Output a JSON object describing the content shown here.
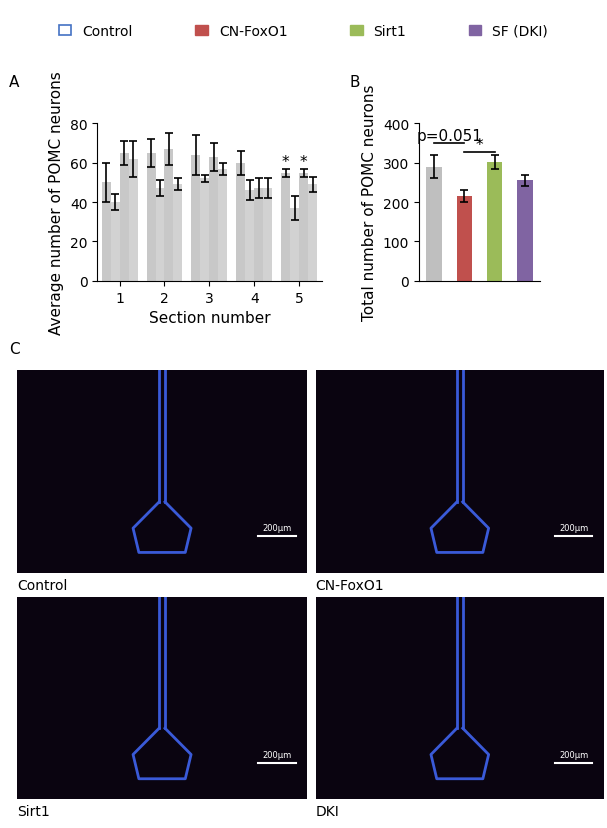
{
  "legend": {
    "entries": [
      {
        "name": "Control",
        "color": "#4472c4",
        "marker": "open"
      },
      {
        "name": "CN-FoxO1",
        "color": "#c0504d"
      },
      {
        "name": "Sirt1",
        "color": "#9bbb59"
      },
      {
        "name": "SF (DKI)",
        "color": "#8064a2"
      }
    ]
  },
  "chart_data": [
    {
      "type": "bar",
      "title": "A",
      "categories": [
        "1",
        "2",
        "3",
        "4",
        "5"
      ],
      "x_label": "Section number",
      "y_label": "Average number of POMC neurons",
      "ylim": [
        0,
        80
      ],
      "yticks": [
        0,
        20,
        40,
        60,
        80
      ],
      "series": [
        {
          "color": "#c8c8c8",
          "values": [
            50,
            65,
            64,
            60,
            55
          ],
          "errors": [
            10,
            7,
            10,
            6,
            2
          ]
        },
        {
          "color": "#d2d2d2",
          "values": [
            40,
            47,
            52,
            46,
            37
          ],
          "errors": [
            4,
            4,
            2,
            5,
            6
          ]
        },
        {
          "color": "#c8c8c8",
          "values": [
            65,
            67,
            63,
            47,
            55
          ],
          "errors": [
            6,
            8,
            7,
            5,
            2
          ]
        },
        {
          "color": "#d2d2d2",
          "values": [
            62,
            49,
            57,
            47,
            49
          ],
          "errors": [
            9,
            3,
            3,
            5,
            4
          ]
        }
      ],
      "annotations": [
        {
          "text": "*",
          "category": 4,
          "series": 0
        },
        {
          "text": "*",
          "category": 4,
          "series": 2
        }
      ]
    },
    {
      "type": "bar",
      "title": "B",
      "categories": [
        null,
        null,
        null,
        null
      ],
      "y_label": "Total number of POMC neurons",
      "values": [
        290,
        215,
        302,
        255
      ],
      "errors": [
        30,
        15,
        18,
        15
      ],
      "colors": [
        "#bfbfbf",
        "#c0504d",
        "#9bbb59",
        "#8064a2"
      ],
      "ylim": [
        0,
        400
      ],
      "yticks": [
        0,
        100,
        200,
        300,
        400
      ],
      "tick_labels": "y",
      "annotations": [
        {
          "text": "p=0.051",
          "from": 0,
          "to": 1,
          "y": 350
        },
        {
          "text": "*",
          "from": 1,
          "to": 2,
          "y": 328
        }
      ]
    }
  ],
  "images": {
    "title": "C",
    "panels": [
      {
        "label": "Control",
        "scale_bar": "200μm"
      },
      {
        "label": "CN-FoxO1",
        "scale_bar": "200μm"
      },
      {
        "label": "Sirt1",
        "scale_bar": "200μm"
      },
      {
        "label": "DKI",
        "scale_bar": "200μm"
      }
    ]
  }
}
